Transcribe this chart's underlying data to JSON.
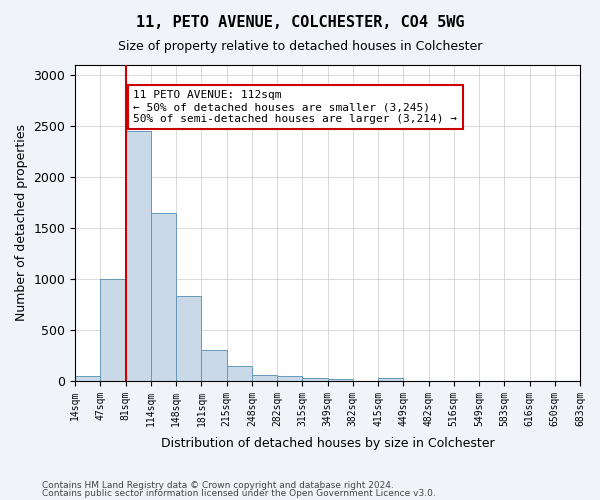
{
  "title": "11, PETO AVENUE, COLCHESTER, CO4 5WG",
  "subtitle": "Size of property relative to detached houses in Colchester",
  "xlabel": "Distribution of detached houses by size in Colchester",
  "ylabel": "Number of detached properties",
  "bar_values": [
    50,
    1000,
    2450,
    1650,
    830,
    300,
    150,
    55,
    45,
    30,
    20,
    0,
    25,
    0,
    0,
    0,
    0,
    0,
    0,
    0
  ],
  "bar_labels": [
    "14sqm",
    "47sqm",
    "81sqm",
    "114sqm",
    "148sqm",
    "181sqm",
    "215sqm",
    "248sqm",
    "282sqm",
    "315sqm",
    "349sqm",
    "382sqm",
    "415sqm",
    "449sqm",
    "482sqm",
    "516sqm",
    "549sqm",
    "583sqm",
    "616sqm",
    "650sqm",
    "683sqm"
  ],
  "bar_color": "#c9d9e8",
  "bar_edgecolor": "#6699bb",
  "vline_x": 2,
  "vline_color": "#cc0000",
  "annotation_text": "11 PETO AVENUE: 112sqm\n← 50% of detached houses are smaller (3,245)\n50% of semi-detached houses are larger (3,214) →",
  "annotation_box_edgecolor": "#cc0000",
  "ylim": [
    0,
    3100
  ],
  "yticks": [
    0,
    500,
    1000,
    1500,
    2000,
    2500,
    3000
  ],
  "footer_line1": "Contains HM Land Registry data © Crown copyright and database right 2024.",
  "footer_line2": "Contains public sector information licensed under the Open Government Licence v3.0.",
  "background_color": "#f0f4f8",
  "plot_bg_color": "#ffffff",
  "figsize": [
    6.0,
    5.0
  ],
  "dpi": 100
}
